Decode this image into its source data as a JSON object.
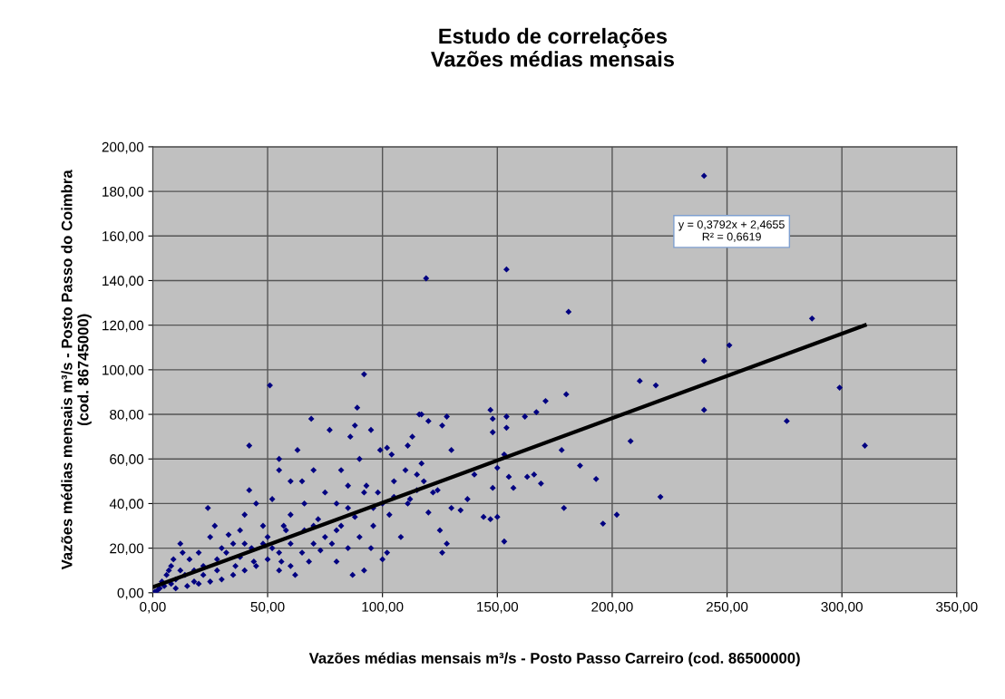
{
  "chart_data": {
    "type": "scatter",
    "title": "Estudo de correlações\nVazões médias mensais",
    "xlabel": "Vazões médias mensais m³/s - Posto Passo Carreiro (cod. 86500000)",
    "ylabel": "Vazões médias mensais m³/s - Posto Passo do Coimbra\n(cod. 86745000)",
    "annotations": [
      "y = 0,3792x + 2,4655\nR² = 0,6619"
    ],
    "xlim": [
      0,
      350
    ],
    "ylim": [
      0,
      200
    ],
    "xticks": [
      {
        "value": 0,
        "label": "0,00"
      },
      {
        "value": 50,
        "label": "50,00"
      },
      {
        "value": 100,
        "label": "100,00"
      },
      {
        "value": 150,
        "label": "150,00"
      },
      {
        "value": 200,
        "label": "200,00"
      },
      {
        "value": 250,
        "label": "250,00"
      },
      {
        "value": 300,
        "label": "300,00"
      },
      {
        "value": 350,
        "label": "350,00"
      }
    ],
    "yticks": [
      {
        "value": 0,
        "label": "0,00"
      },
      {
        "value": 20,
        "label": "20,00"
      },
      {
        "value": 40,
        "label": "40,00"
      },
      {
        "value": 60,
        "label": "60,00"
      },
      {
        "value": 80,
        "label": "80,00"
      },
      {
        "value": 100,
        "label": "100,00"
      },
      {
        "value": 120,
        "label": "120,00"
      },
      {
        "value": 140,
        "label": "140,00"
      },
      {
        "value": 160,
        "label": "160,00"
      },
      {
        "value": 180,
        "label": "180,00"
      },
      {
        "value": 200,
        "label": "200,00"
      }
    ],
    "grid": true,
    "series": [
      {
        "marker": "diamond",
        "color": "#000080",
        "x": [
          240,
          119,
          154,
          181,
          287,
          251,
          240,
          212,
          219,
          299,
          51,
          92,
          240,
          276,
          310,
          208,
          221,
          196,
          202,
          178,
          186,
          193,
          179,
          180,
          171,
          167,
          162,
          154,
          147,
          148,
          154,
          148,
          153,
          155,
          150,
          157,
          148,
          153,
          150,
          163,
          166,
          169,
          147,
          140,
          130,
          128,
          126,
          120,
          117,
          116,
          113,
          111,
          110,
          104,
          102,
          99,
          95,
          88,
          89,
          86,
          77,
          69,
          42,
          128,
          126,
          130,
          122,
          124,
          117,
          115,
          118,
          115,
          105,
          111,
          100,
          96,
          92,
          90,
          93,
          85,
          82,
          80,
          75,
          70,
          65,
          63,
          60,
          55,
          55,
          52,
          57,
          60,
          66,
          70,
          75,
          78,
          85,
          90,
          95,
          100,
          102,
          108,
          103,
          96,
          88,
          82,
          72,
          66,
          60,
          55,
          50,
          48,
          45,
          42,
          40,
          38,
          35,
          33,
          30,
          28,
          25,
          24,
          22,
          20,
          18,
          16,
          14,
          12,
          12,
          10,
          8,
          8,
          6,
          5,
          4,
          3,
          2,
          1,
          50,
          45,
          55,
          60,
          62,
          68,
          73,
          87,
          80,
          92,
          40,
          35,
          30,
          25,
          20,
          15,
          10,
          38,
          28,
          22,
          18,
          43,
          48,
          58,
          65,
          70,
          80,
          85,
          98,
          105,
          112,
          120,
          125,
          134,
          137,
          144,
          9,
          13,
          7,
          40,
          32,
          36,
          27,
          44,
          52,
          56
        ],
        "values": [
          187,
          141,
          145,
          126,
          123,
          111,
          104,
          95,
          93,
          92,
          93,
          98,
          82,
          77,
          66,
          68,
          43,
          31,
          35,
          64,
          57,
          51,
          38,
          89,
          86,
          81,
          79,
          79,
          82,
          78,
          74,
          72,
          62,
          52,
          56,
          47,
          47,
          23,
          34,
          52,
          53,
          49,
          33,
          53,
          64,
          79,
          75,
          77,
          80,
          80,
          70,
          66,
          55,
          62,
          65,
          64,
          73,
          75,
          83,
          70,
          73,
          78,
          66,
          22,
          18,
          38,
          45,
          46,
          58,
          46,
          50,
          53,
          43,
          40,
          40,
          38,
          45,
          60,
          48,
          48,
          55,
          40,
          45,
          55,
          50,
          64,
          50,
          55,
          60,
          42,
          30,
          35,
          40,
          30,
          25,
          22,
          20,
          25,
          20,
          15,
          18,
          25,
          35,
          30,
          34,
          30,
          33,
          28,
          22,
          18,
          25,
          30,
          40,
          46,
          35,
          28,
          22,
          26,
          20,
          15,
          25,
          38,
          12,
          18,
          10,
          15,
          8,
          10,
          22,
          6,
          12,
          4,
          8,
          3,
          5,
          2,
          1,
          0.5,
          15,
          12,
          10,
          12,
          8,
          14,
          19,
          8,
          14,
          10,
          10,
          8,
          6,
          5,
          4,
          3,
          2,
          16,
          10,
          8,
          5,
          20,
          22,
          28,
          18,
          22,
          28,
          38,
          45,
          50,
          42,
          36,
          28,
          37,
          42,
          34,
          15,
          18,
          10,
          22,
          18,
          12,
          30,
          14,
          20,
          14
        ]
      },
      {
        "type": "line",
        "marker": "none",
        "color": "#000000",
        "x": [
          0,
          310
        ],
        "values": [
          2.5,
          120.0
        ]
      }
    ]
  }
}
